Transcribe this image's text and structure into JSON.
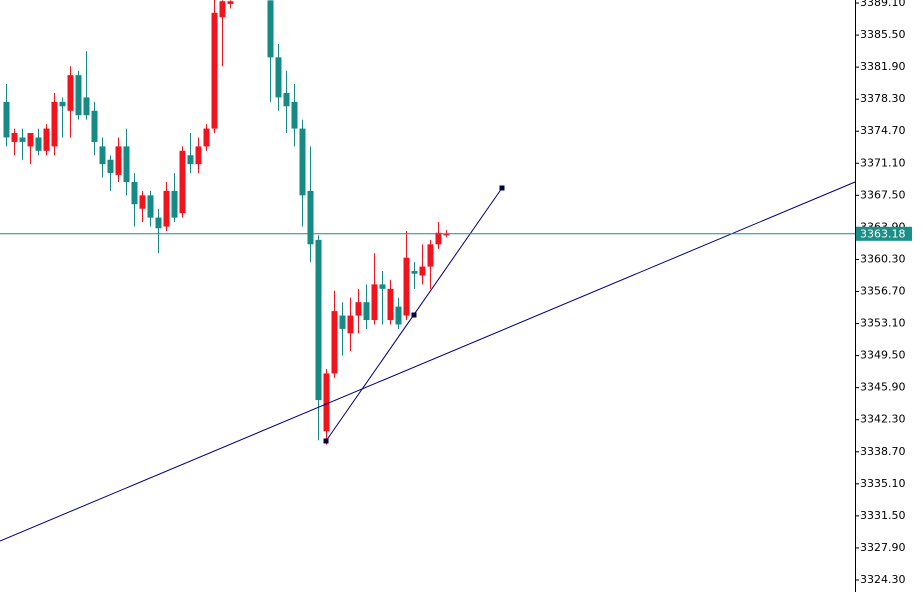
{
  "chart_data": {
    "type": "candlestick",
    "open": [
      3378,
      3373.5,
      3374,
      3373,
      3374,
      3372.5,
      3373,
      3378,
      3377,
      3381,
      3378.5,
      3377,
      3373,
      3371.5,
      3369.8,
      3373,
      3369,
      3366,
      3367.5,
      3365,
      3364,
      3368,
      3365.5,
      3372,
      3371,
      3373,
      3375,
      3387.5,
      3389,
      null,
      null,
      null,
      null,
      3389.4,
      3383,
      3379,
      3378,
      3375,
      3368,
      3362.5,
      3341,
      3347.5,
      3354,
      3352,
      3354,
      3355.5,
      3353.5,
      3357.5,
      3353.5,
      3355,
      3354,
      3359,
      3358.5,
      3359.5,
      3362,
      3363
    ],
    "high": [
      3380,
      3375,
      3375,
      3374.5,
      3375,
      3375.5,
      3379,
      3378.5,
      3382,
      3381.5,
      3383.7,
      3378,
      3374,
      3372,
      3374,
      3375,
      3370,
      3368,
      3368,
      3366,
      3369,
      3370,
      3373,
      3374.5,
      3374,
      3375.5,
      3389.5,
      3389.4,
      3389.4,
      null,
      null,
      null,
      null,
      3389.4,
      3384.5,
      3381.5,
      3380,
      3376,
      3373,
      3363,
      3348,
      3356.8,
      3355.5,
      3356,
      3357,
      3357.5,
      3361,
      3359,
      3358,
      3356,
      3363.5,
      3360,
      3362,
      3362.5,
      3364.5,
      3363.6
    ],
    "low": [
      3373,
      3372,
      3371.5,
      3371,
      3372,
      3372,
      3372,
      3374,
      3374,
      3376,
      3376,
      3372,
      3369.5,
      3368,
      3369,
      3367.5,
      3364,
      3364.5,
      3364,
      3361,
      3363.5,
      3364.5,
      3365,
      3370,
      3370,
      3372.5,
      3374.5,
      3382,
      3388.5,
      null,
      null,
      null,
      null,
      3378,
      3377,
      3374.5,
      3373,
      3364,
      3360,
      3340,
      3339.5,
      3347,
      3349.5,
      3350,
      3352,
      3352.5,
      3353,
      3353,
      3353,
      3352.5,
      3353.5,
      3357,
      3357.5,
      3357,
      3361.5,
      3362.8
    ],
    "close": [
      3374,
      3374.5,
      3373.5,
      3374.5,
      3372.5,
      3375,
      3378,
      3377.5,
      3381,
      3376.5,
      3376.5,
      3373.5,
      3371,
      3370,
      3373,
      3369,
      3366.5,
      3367.5,
      3365,
      3363.8,
      3368,
      3365,
      3372.5,
      3371,
      3373,
      3375,
      3388,
      3389.3,
      3389.3,
      null,
      null,
      null,
      null,
      3383,
      3378.5,
      3377.5,
      3375,
      3367.5,
      3362,
      3344.5,
      3347.5,
      3354.5,
      3352.5,
      3354,
      3355.5,
      3353.5,
      3357.5,
      3357,
      3357,
      3353,
      3360.5,
      3358.7,
      3359.5,
      3362,
      3363.3,
      3363.18
    ],
    "up_color": "#f0141e",
    "down_color": "#168a84",
    "current_price": 3363.18,
    "current_price_color": "#1a8f87",
    "ylim": [
      3322.95,
      3389.44
    ],
    "yticks": [
      {
        "value": 3389.1,
        "label": "3389.10"
      },
      {
        "value": 3385.5,
        "label": "3385.50"
      },
      {
        "value": 3381.9,
        "label": "3381.90"
      },
      {
        "value": 3378.3,
        "label": "3378.30"
      },
      {
        "value": 3374.7,
        "label": "3374.70"
      },
      {
        "value": 3371.1,
        "label": "3371.10"
      },
      {
        "value": 3367.5,
        "label": "3367.50"
      },
      {
        "value": 3363.9,
        "label": "3363.90"
      },
      {
        "value": 3360.3,
        "label": "3360.30"
      },
      {
        "value": 3356.7,
        "label": "3356.70"
      },
      {
        "value": 3353.1,
        "label": "3353.10"
      },
      {
        "value": 3349.5,
        "label": "3349.50"
      },
      {
        "value": 3345.9,
        "label": "3345.90"
      },
      {
        "value": 3342.3,
        "label": "3342.30"
      },
      {
        "value": 3338.7,
        "label": "3338.70"
      },
      {
        "value": 3335.1,
        "label": "3335.10"
      },
      {
        "value": 3331.5,
        "label": "3331.50"
      },
      {
        "value": 3327.9,
        "label": "3327.90"
      },
      {
        "value": 3324.3,
        "label": "3324.30"
      }
    ]
  }
}
